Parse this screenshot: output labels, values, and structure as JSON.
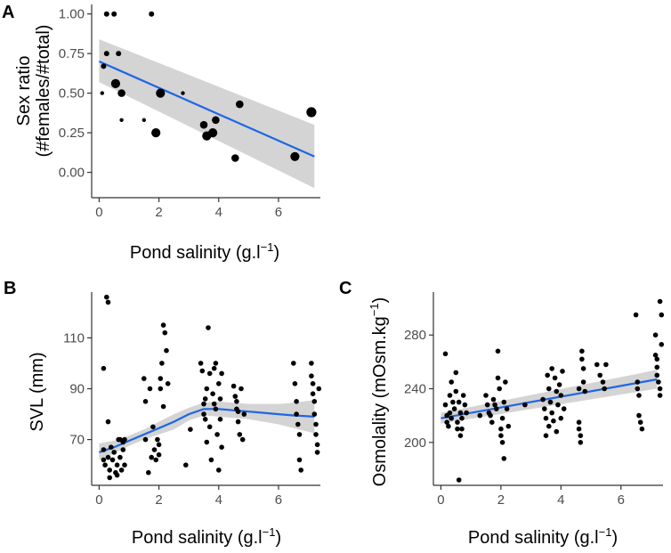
{
  "colors": {
    "point": "#000000",
    "fit": "#1f66e5",
    "band": "#d4d4d4",
    "axis": "#333333"
  },
  "chart_data": [
    {
      "panel": "A",
      "type": "scatter",
      "xlabel_main": "Pond salinity (g.l",
      "xlabel_sup": "−1",
      "xlabel_close": ")",
      "ylabel_line1": "Sex ratio",
      "ylabel_line2": "(#females/#total)",
      "xlim": [
        -0.25,
        7.4
      ],
      "ylim": [
        -0.16,
        1.06
      ],
      "xticks": [
        0,
        2,
        4,
        6
      ],
      "xtick_labels": [
        "0",
        "2",
        "4",
        "6"
      ],
      "yticks": [
        0,
        0.25,
        0.5,
        0.75,
        1
      ],
      "ytick_labels": [
        "0.00",
        "0.25",
        "0.50",
        "0.75",
        "1.00"
      ],
      "points": [
        [
          0.15,
          0.67,
          1
        ],
        [
          0.25,
          1.0,
          1
        ],
        [
          0.5,
          1.0,
          1
        ],
        [
          0.25,
          0.75,
          1
        ],
        [
          0.1,
          0.5,
          0.7
        ],
        [
          0.55,
          0.56,
          1.8
        ],
        [
          0.65,
          0.75,
          1
        ],
        [
          0.75,
          0.5,
          1.5
        ],
        [
          0.75,
          0.33,
          0.7
        ],
        [
          1.5,
          0.33,
          0.7
        ],
        [
          1.75,
          1.0,
          1
        ],
        [
          1.9,
          0.25,
          1.8
        ],
        [
          2.05,
          0.5,
          1.8
        ],
        [
          2.8,
          0.5,
          0.7
        ],
        [
          3.5,
          0.3,
          1.5
        ],
        [
          3.6,
          0.23,
          1.8
        ],
        [
          3.8,
          0.25,
          1.8
        ],
        [
          3.9,
          0.33,
          1.5
        ],
        [
          4.55,
          0.09,
          1.5
        ],
        [
          4.7,
          0.43,
          1.5
        ],
        [
          6.55,
          0.1,
          1.8
        ],
        [
          7.1,
          0.38,
          2
        ]
      ],
      "fit": {
        "method": "linear",
        "x": [
          0,
          7.2
        ],
        "y": [
          0.7,
          0.1
        ],
        "ci_low": [
          0.57,
          -0.1
        ],
        "ci_high": [
          0.84,
          0.3
        ]
      }
    },
    {
      "panel": "B",
      "type": "scatter",
      "xlabel_main": "Pond salinity (g.l",
      "xlabel_sup": "−1",
      "xlabel_close": ")",
      "ylabel": "SVL (mm)",
      "xlim": [
        -0.25,
        7.4
      ],
      "ylim": [
        52,
        128
      ],
      "xticks": [
        0,
        2,
        4,
        6
      ],
      "xtick_labels": [
        "0",
        "2",
        "4",
        "6"
      ],
      "yticks": [
        70,
        90,
        110
      ],
      "ytick_labels": [
        "70",
        "90",
        "110"
      ],
      "points": [
        [
          0.15,
          98
        ],
        [
          0.15,
          62
        ],
        [
          0.15,
          66
        ],
        [
          0.2,
          60
        ],
        [
          0.25,
          126
        ],
        [
          0.3,
          124
        ],
        [
          0.3,
          77
        ],
        [
          0.3,
          63
        ],
        [
          0.35,
          55
        ],
        [
          0.35,
          58
        ],
        [
          0.4,
          67
        ],
        [
          0.45,
          62
        ],
        [
          0.5,
          65
        ],
        [
          0.55,
          57
        ],
        [
          0.6,
          56
        ],
        [
          0.6,
          60
        ],
        [
          0.65,
          70
        ],
        [
          0.7,
          63
        ],
        [
          0.7,
          70
        ],
        [
          0.75,
          58
        ],
        [
          0.8,
          66
        ],
        [
          0.8,
          69
        ],
        [
          0.85,
          70
        ],
        [
          0.85,
          60
        ],
        [
          1.5,
          94
        ],
        [
          1.55,
          85
        ],
        [
          1.55,
          70
        ],
        [
          1.65,
          57
        ],
        [
          1.7,
          90
        ],
        [
          1.75,
          63
        ],
        [
          1.8,
          75
        ],
        [
          1.85,
          66
        ],
        [
          1.9,
          62
        ],
        [
          1.95,
          70
        ],
        [
          2.0,
          64
        ],
        [
          2.0,
          68
        ],
        [
          2.05,
          94
        ],
        [
          2.05,
          90
        ],
        [
          2.1,
          100
        ],
        [
          2.15,
          115
        ],
        [
          2.15,
          83
        ],
        [
          2.2,
          112
        ],
        [
          2.25,
          105
        ],
        [
          2.3,
          92
        ],
        [
          2.9,
          60
        ],
        [
          3.05,
          74
        ],
        [
          3.4,
          100
        ],
        [
          3.45,
          97
        ],
        [
          3.5,
          84
        ],
        [
          3.5,
          80
        ],
        [
          3.55,
          86
        ],
        [
          3.55,
          78
        ],
        [
          3.6,
          90
        ],
        [
          3.6,
          69
        ],
        [
          3.65,
          114
        ],
        [
          3.7,
          96
        ],
        [
          3.7,
          75
        ],
        [
          3.75,
          62
        ],
        [
          3.8,
          88
        ],
        [
          3.85,
          98
        ],
        [
          3.85,
          84
        ],
        [
          3.9,
          100
        ],
        [
          3.9,
          82
        ],
        [
          3.95,
          72
        ],
        [
          4.0,
          58
        ],
        [
          4.0,
          92
        ],
        [
          4.05,
          86
        ],
        [
          4.05,
          78
        ],
        [
          4.1,
          96
        ],
        [
          4.1,
          67
        ],
        [
          4.5,
          91
        ],
        [
          4.55,
          87
        ],
        [
          4.6,
          85
        ],
        [
          4.6,
          82
        ],
        [
          4.65,
          81
        ],
        [
          4.65,
          77
        ],
        [
          4.7,
          72
        ],
        [
          4.75,
          90
        ],
        [
          4.8,
          70
        ],
        [
          4.85,
          80
        ],
        [
          6.5,
          100
        ],
        [
          6.55,
          92
        ],
        [
          6.6,
          85
        ],
        [
          6.6,
          80
        ],
        [
          6.65,
          76
        ],
        [
          6.7,
          72
        ],
        [
          6.7,
          62
        ],
        [
          6.75,
          58
        ],
        [
          7.1,
          100
        ],
        [
          7.1,
          95
        ],
        [
          7.15,
          92
        ],
        [
          7.15,
          88
        ],
        [
          7.2,
          85
        ],
        [
          7.2,
          80
        ],
        [
          7.25,
          76
        ],
        [
          7.25,
          72
        ],
        [
          7.3,
          68
        ],
        [
          7.3,
          65
        ],
        [
          7.35,
          90
        ]
      ],
      "fit": {
        "method": "loess",
        "x": [
          0,
          0.5,
          1,
          1.5,
          2,
          2.5,
          3,
          3.5,
          4,
          4.5,
          5,
          5.5,
          6,
          6.5,
          7.2
        ],
        "y": [
          65,
          67,
          69.5,
          72,
          74.5,
          77,
          80,
          82,
          82,
          81.5,
          81,
          80.5,
          80,
          79.5,
          79
        ],
        "ci_low": [
          62,
          64.5,
          67.5,
          70,
          72,
          74,
          77.5,
          79.5,
          79,
          78.5,
          78,
          77,
          76,
          74.5,
          72.5
        ],
        "ci_high": [
          68.5,
          69.5,
          71.5,
          74,
          77,
          80,
          82.5,
          84.5,
          85,
          84.5,
          84,
          84,
          84,
          84.5,
          85.5
        ]
      }
    },
    {
      "panel": "C",
      "type": "scatter",
      "xlabel_main": "Pond salinity (g.l",
      "xlabel_sup": "−1",
      "xlabel_close": ")",
      "ylabel_main": "Osmolality (mOsm.kg",
      "ylabel_sup": "−1",
      "ylabel_close": ")",
      "xlim": [
        -0.25,
        7.4
      ],
      "ylim": [
        168,
        312
      ],
      "xticks": [
        0,
        2,
        4,
        6
      ],
      "xtick_labels": [
        "0",
        "2",
        "4",
        "6"
      ],
      "yticks": [
        200,
        240,
        280
      ],
      "ytick_labels": [
        "200",
        "240",
        "280"
      ],
      "points": [
        [
          0.15,
          266
        ],
        [
          0.15,
          228
        ],
        [
          0.2,
          220
        ],
        [
          0.2,
          215
        ],
        [
          0.25,
          212
        ],
        [
          0.3,
          235
        ],
        [
          0.3,
          222
        ],
        [
          0.35,
          245
        ],
        [
          0.35,
          218
        ],
        [
          0.4,
          230
        ],
        [
          0.45,
          225
        ],
        [
          0.5,
          252
        ],
        [
          0.5,
          238
        ],
        [
          0.55,
          215
        ],
        [
          0.55,
          210
        ],
        [
          0.6,
          230
        ],
        [
          0.6,
          172
        ],
        [
          0.65,
          222
        ],
        [
          0.65,
          205
        ],
        [
          0.7,
          218
        ],
        [
          0.7,
          210
        ],
        [
          0.75,
          235
        ],
        [
          0.8,
          228
        ],
        [
          0.85,
          222
        ],
        [
          1.3,
          220
        ],
        [
          1.5,
          235
        ],
        [
          1.55,
          228
        ],
        [
          1.6,
          222
        ],
        [
          1.65,
          220
        ],
        [
          1.7,
          215
        ],
        [
          1.75,
          232
        ],
        [
          1.8,
          228
        ],
        [
          1.85,
          225
        ],
        [
          1.9,
          268
        ],
        [
          1.9,
          248
        ],
        [
          1.95,
          240
        ],
        [
          2.0,
          210
        ],
        [
          2.0,
          205
        ],
        [
          2.05,
          218
        ],
        [
          2.05,
          200
        ],
        [
          2.1,
          230
        ],
        [
          2.1,
          188
        ],
        [
          2.15,
          245
        ],
        [
          2.2,
          225
        ],
        [
          2.25,
          212
        ],
        [
          2.8,
          228
        ],
        [
          3.4,
          232
        ],
        [
          3.45,
          225
        ],
        [
          3.5,
          218
        ],
        [
          3.5,
          205
        ],
        [
          3.55,
          250
        ],
        [
          3.6,
          240
        ],
        [
          3.6,
          212
        ],
        [
          3.65,
          230
        ],
        [
          3.7,
          255
        ],
        [
          3.7,
          222
        ],
        [
          3.75,
          216
        ],
        [
          3.8,
          248
        ],
        [
          3.85,
          238
        ],
        [
          3.85,
          208
        ],
        [
          3.9,
          228
        ],
        [
          3.95,
          243
        ],
        [
          4.0,
          235
        ],
        [
          4.0,
          218
        ],
        [
          4.05,
          253
        ],
        [
          4.1,
          225
        ],
        [
          4.6,
          240
        ],
        [
          4.6,
          215
        ],
        [
          4.6,
          210
        ],
        [
          4.65,
          205
        ],
        [
          4.65,
          200
        ],
        [
          4.7,
          268
        ],
        [
          4.7,
          262
        ],
        [
          4.75,
          255
        ],
        [
          4.75,
          245
        ],
        [
          4.8,
          238
        ],
        [
          5.2,
          258
        ],
        [
          5.3,
          250
        ],
        [
          5.4,
          245
        ],
        [
          5.45,
          240
        ],
        [
          5.5,
          258
        ],
        [
          6.5,
          295
        ],
        [
          6.55,
          245
        ],
        [
          6.55,
          240
        ],
        [
          6.6,
          235
        ],
        [
          6.6,
          220
        ],
        [
          6.65,
          215
        ],
        [
          6.7,
          210
        ],
        [
          7.15,
          280
        ],
        [
          7.15,
          265
        ],
        [
          7.2,
          262
        ],
        [
          7.2,
          256
        ],
        [
          7.2,
          250
        ],
        [
          7.25,
          245
        ],
        [
          7.3,
          240
        ],
        [
          7.3,
          235
        ],
        [
          7.3,
          305
        ],
        [
          7.35,
          295
        ],
        [
          7.35,
          273
        ]
      ],
      "fit": {
        "method": "linear",
        "x": [
          0,
          7.2
        ],
        "y": [
          218,
          247
        ],
        "ci_low": [
          214,
          240
        ],
        "ci_high": [
          222,
          254
        ]
      }
    }
  ]
}
